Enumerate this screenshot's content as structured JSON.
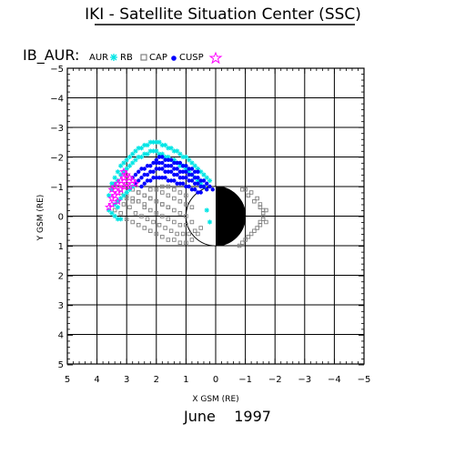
{
  "page_title": "IKI - Satellite Situation Center (SSC)",
  "panel_id": "IB_AUR:",
  "legend": [
    {
      "label": "AUR",
      "marker": "asterisk",
      "color": "#00e5e5"
    },
    {
      "label": "RB",
      "marker": "square",
      "color": "#808080"
    },
    {
      "label": "CAP",
      "marker": "circle-filled",
      "color": "#0000ff"
    },
    {
      "label": "CUSP",
      "marker": "star-open",
      "color": "#ff00ff"
    }
  ],
  "date_label": "June    1997",
  "chart_data": {
    "type": "scatter",
    "xlabel": "X GSM (RE)",
    "ylabel": "Y GSM (RE)",
    "xlim": [
      5,
      -5
    ],
    "ylim": [
      -5,
      5
    ],
    "x_ticks": [
      "5",
      "4",
      "3",
      "2",
      "1",
      "0",
      "−1",
      "−2",
      "−3",
      "−4",
      "−5"
    ],
    "y_ticks": [
      "−5",
      "−4",
      "−3",
      "−2",
      "−1",
      "0",
      "1",
      "2",
      "3",
      "4",
      "5"
    ],
    "grid": true,
    "earth": {
      "center": [
        0,
        0
      ],
      "radius": 1,
      "night_side": "negative-x"
    },
    "series": [
      {
        "name": "RB",
        "color": "#808080",
        "x": [
          3.4,
          3.2,
          3.0,
          2.8,
          2.6,
          2.4,
          2.2,
          2.0,
          1.8,
          1.6,
          1.4,
          1.2,
          1.0,
          0.8,
          0.6,
          3.3,
          3.1,
          2.9,
          2.7,
          2.5,
          2.3,
          2.1,
          1.9,
          1.7,
          1.5,
          1.3,
          1.1,
          0.9,
          0.7,
          0.5,
          3.0,
          2.8,
          2.6,
          2.4,
          2.2,
          2.0,
          1.8,
          1.6,
          1.4,
          1.2,
          1.0,
          0.8,
          2.6,
          2.4,
          2.2,
          2.0,
          1.8,
          1.6,
          1.4,
          1.2,
          1.0,
          2.2,
          2.0,
          1.8,
          1.6,
          1.4,
          1.2,
          1.0,
          0.8,
          1.8,
          1.6,
          1.4,
          1.2,
          1.0,
          2.8,
          2.6,
          2.4,
          2.2,
          2.0,
          1.8,
          1.6,
          3.2,
          3.0,
          2.8,
          2.6,
          2.4,
          -1.0,
          -1.2,
          -1.4,
          -1.5,
          -1.6,
          -1.6,
          -1.5,
          -1.4,
          -1.2,
          -1.0,
          -0.9,
          -0.8,
          -1.1,
          -1.3,
          -1.5,
          -1.6,
          -1.6,
          -1.5,
          -1.3,
          -1.1,
          -0.9,
          -1.7,
          -1.7
        ],
        "y": [
          -0.2,
          -0.1,
          0.1,
          0.2,
          0.3,
          0.4,
          0.5,
          0.6,
          0.7,
          0.8,
          0.8,
          0.9,
          0.9,
          0.8,
          0.6,
          -0.5,
          -0.4,
          -0.3,
          -0.1,
          0.0,
          0.1,
          0.2,
          0.3,
          0.4,
          0.5,
          0.6,
          0.6,
          0.6,
          0.5,
          0.4,
          -0.6,
          -0.5,
          -0.5,
          -0.3,
          -0.2,
          -0.1,
          0.0,
          0.1,
          0.2,
          0.3,
          0.3,
          0.2,
          -0.8,
          -0.7,
          -0.6,
          -0.5,
          -0.4,
          -0.3,
          -0.2,
          -0.1,
          0.0,
          -0.9,
          -0.9,
          -0.8,
          -0.7,
          -0.6,
          -0.5,
          -0.4,
          -0.3,
          -1.0,
          -1.0,
          -0.9,
          -0.8,
          -0.7,
          -0.9,
          -0.8,
          -0.7,
          -0.6,
          -0.5,
          -0.4,
          -0.3,
          -0.8,
          -0.7,
          -0.6,
          -0.5,
          -0.4,
          -0.9,
          -0.8,
          -0.6,
          -0.4,
          -0.2,
          0.0,
          0.2,
          0.4,
          0.6,
          0.8,
          0.9,
          1.0,
          0.7,
          0.5,
          0.3,
          0.1,
          -0.1,
          -0.3,
          -0.5,
          -0.7,
          -0.9,
          -0.2,
          0.2
        ]
      },
      {
        "name": "AUR",
        "color": "#00e5e5",
        "x": [
          3.5,
          3.4,
          3.3,
          3.2,
          3.1,
          3.0,
          2.9,
          2.8,
          2.7,
          2.6,
          2.5,
          2.4,
          2.3,
          2.2,
          2.1,
          2.0,
          1.9,
          1.8,
          1.7,
          1.6,
          1.5,
          1.4,
          1.3,
          1.2,
          1.1,
          1.0,
          0.9,
          0.8,
          0.7,
          0.6,
          0.5,
          0.4,
          0.3,
          0.2,
          3.6,
          3.5,
          3.4,
          3.3,
          3.2,
          3.1,
          3.0,
          2.9,
          2.8,
          2.7,
          2.6,
          2.5,
          2.4,
          2.3,
          2.2,
          2.1,
          2.0,
          1.9,
          1.8,
          1.7,
          1.6,
          1.5,
          1.4,
          1.3,
          1.2,
          1.1,
          1.0,
          0.9,
          0.8,
          0.7,
          0.6,
          0.5,
          0.4,
          3.4,
          3.3,
          3.2,
          3.1,
          3.0,
          2.9,
          2.8,
          3.6,
          3.5,
          3.4,
          3.3,
          3.2,
          3.3,
          0.3,
          0.2
        ],
        "y": [
          -1.1,
          -1.3,
          -1.5,
          -1.7,
          -1.8,
          -1.9,
          -2.0,
          -2.1,
          -2.2,
          -2.3,
          -2.3,
          -2.4,
          -2.4,
          -2.5,
          -2.5,
          -2.5,
          -2.5,
          -2.4,
          -2.4,
          -2.3,
          -2.3,
          -2.2,
          -2.2,
          -2.1,
          -2.0,
          -2.0,
          -1.9,
          -1.8,
          -1.7,
          -1.6,
          -1.5,
          -1.4,
          -1.3,
          -1.2,
          -0.7,
          -0.9,
          -1.1,
          -1.2,
          -1.4,
          -1.5,
          -1.6,
          -1.7,
          -1.8,
          -1.9,
          -2.0,
          -2.0,
          -2.1,
          -2.1,
          -2.2,
          -2.2,
          -2.2,
          -2.1,
          -2.1,
          -2.0,
          -2.0,
          -1.9,
          -1.9,
          -1.8,
          -1.7,
          -1.7,
          -1.6,
          -1.5,
          -1.4,
          -1.3,
          -1.2,
          -1.1,
          -1.0,
          -0.4,
          -0.5,
          -0.6,
          -0.7,
          -0.8,
          -0.9,
          -1.0,
          -0.2,
          -0.1,
          0.0,
          0.1,
          0.1,
          -0.3,
          -0.2,
          0.2
        ]
      },
      {
        "name": "CAP",
        "color": "#0000ff",
        "x": [
          2.8,
          2.7,
          2.6,
          2.5,
          2.4,
          2.3,
          2.2,
          2.1,
          2.0,
          1.9,
          1.8,
          1.7,
          1.6,
          1.5,
          1.4,
          1.3,
          1.2,
          1.1,
          1.0,
          0.9,
          0.8,
          0.7,
          0.6,
          0.5,
          0.4,
          0.3,
          0.2,
          0.1,
          2.7,
          2.6,
          2.5,
          2.4,
          2.3,
          2.2,
          2.1,
          2.0,
          1.9,
          1.8,
          1.7,
          1.6,
          1.5,
          1.4,
          1.3,
          1.2,
          1.1,
          1.0,
          0.9,
          0.8,
          0.7,
          0.6,
          0.5,
          0.4,
          0.3,
          2.5,
          2.4,
          2.3,
          2.2,
          2.1,
          2.0,
          1.9,
          1.8,
          1.7,
          1.6,
          1.5,
          1.4,
          1.3,
          1.2,
          1.1,
          1.0,
          0.9,
          0.8,
          0.7,
          0.6,
          0.5,
          2.0,
          1.9,
          1.8,
          1.7,
          1.6,
          1.5,
          1.4,
          1.3,
          1.2,
          1.1,
          1.0,
          0.9,
          0.8,
          0.7,
          0.6
        ],
        "y": [
          -1.3,
          -1.4,
          -1.5,
          -1.6,
          -1.6,
          -1.7,
          -1.7,
          -1.8,
          -1.8,
          -1.8,
          -1.8,
          -1.7,
          -1.7,
          -1.7,
          -1.6,
          -1.6,
          -1.5,
          -1.5,
          -1.5,
          -1.4,
          -1.4,
          -1.3,
          -1.3,
          -1.2,
          -1.2,
          -1.1,
          -1.0,
          -0.9,
          -1.1,
          -1.2,
          -1.3,
          -1.4,
          -1.4,
          -1.5,
          -1.5,
          -1.6,
          -1.6,
          -1.6,
          -1.5,
          -1.5,
          -1.5,
          -1.4,
          -1.4,
          -1.3,
          -1.3,
          -1.3,
          -1.2,
          -1.2,
          -1.1,
          -1.1,
          -1.0,
          -1.0,
          -0.9,
          -1.0,
          -1.1,
          -1.2,
          -1.2,
          -1.3,
          -1.3,
          -1.3,
          -1.3,
          -1.3,
          -1.2,
          -1.2,
          -1.2,
          -1.1,
          -1.1,
          -1.1,
          -1.0,
          -1.0,
          -0.9,
          -0.9,
          -0.8,
          -0.8,
          -1.9,
          -2.0,
          -2.0,
          -1.9,
          -1.9,
          -1.9,
          -1.8,
          -1.8,
          -1.8,
          -1.7,
          -1.7,
          -1.6,
          -1.6,
          -1.5,
          -1.5
        ]
      },
      {
        "name": "CUSP",
        "color": "#ff00ff",
        "x": [
          3.5,
          3.4,
          3.3,
          3.2,
          3.1,
          3.0,
          2.9,
          2.8,
          2.7,
          3.5,
          3.4,
          3.3,
          3.2,
          3.1,
          3.0,
          2.9,
          3.6,
          3.5,
          3.3,
          3.1
        ],
        "y": [
          -0.9,
          -1.0,
          -1.1,
          -1.2,
          -1.3,
          -1.4,
          -1.3,
          -1.2,
          -1.1,
          -0.6,
          -0.7,
          -0.8,
          -0.9,
          -1.0,
          -1.1,
          -1.0,
          -0.3,
          -0.4,
          -0.5,
          -1.5
        ]
      }
    ]
  }
}
